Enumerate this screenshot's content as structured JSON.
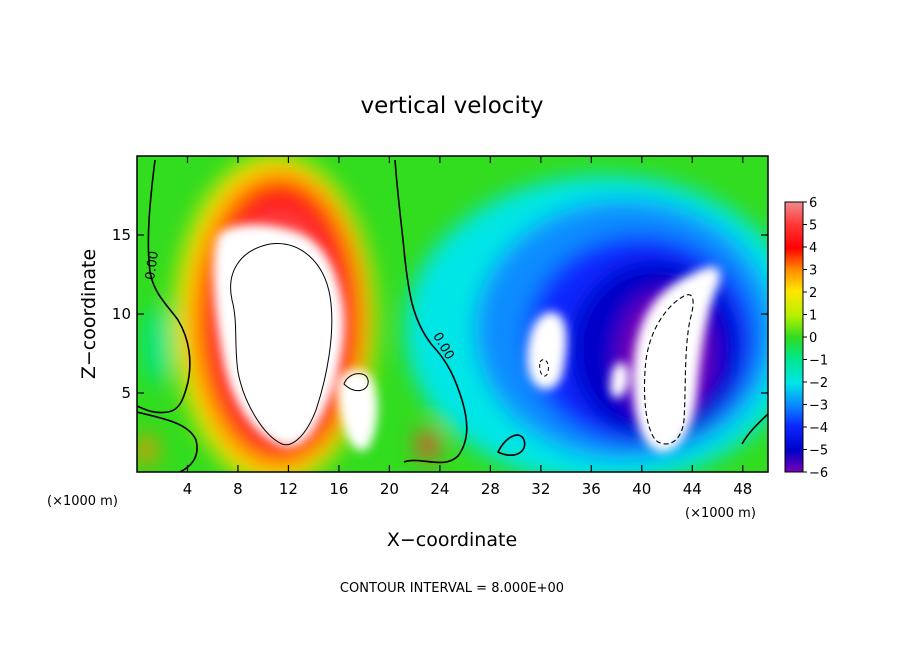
{
  "chart_data": {
    "type": "heatmap",
    "title": "vertical velocity",
    "xlabel": "X−coordinate",
    "ylabel": "Z−coordinate",
    "x_unit_left": "(×1000 m)",
    "x_unit_right": "(×1000 m)",
    "footer": "CONTOUR INTERVAL = 8.000E+00",
    "xlim": [
      0,
      50
    ],
    "ylim": [
      0,
      20
    ],
    "x_ticks": [
      4,
      8,
      12,
      16,
      20,
      24,
      28,
      32,
      36,
      40,
      44,
      48
    ],
    "y_ticks": [
      5,
      10,
      15
    ],
    "colorbar": {
      "range": [
        -6,
        6
      ],
      "ticks": [
        6,
        5,
        4,
        3,
        2,
        1,
        0,
        -1,
        -2,
        -3,
        -4,
        -5,
        -6
      ],
      "tick_labels": [
        "6",
        "5",
        "4",
        "3",
        "2",
        "1",
        "0",
        "−1",
        "−2",
        "−3",
        "−4",
        "−5",
        "−6"
      ]
    },
    "contour_labels": [
      "0.00",
      "0.00"
    ],
    "features": [
      {
        "kind": "updraft",
        "x": 11,
        "z": 9,
        "rx": 5,
        "rz": 7,
        "peak": 16
      },
      {
        "kind": "updraft",
        "x": 18,
        "z": 4,
        "rx": 1.5,
        "rz": 2.5,
        "peak": 9
      },
      {
        "kind": "downdraft",
        "x": 42.5,
        "z": 6.5,
        "rx": 3.5,
        "rz": 6,
        "peak": -16
      },
      {
        "kind": "downdraft",
        "x": 32,
        "z": 7.5,
        "rx": 2,
        "rz": 2,
        "peak": -10
      }
    ]
  }
}
